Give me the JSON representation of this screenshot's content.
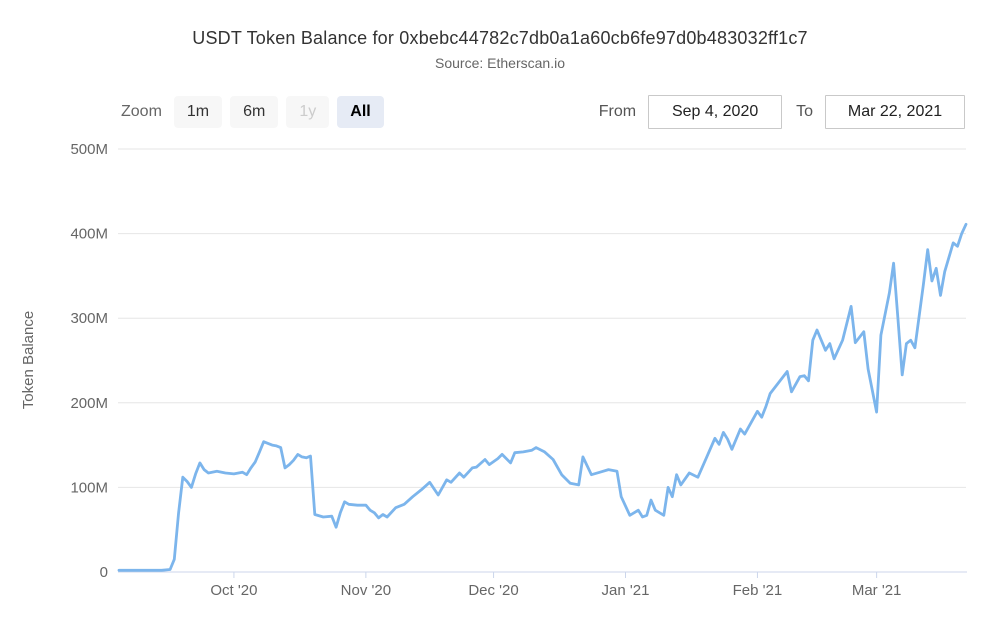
{
  "chart": {
    "title": "USDT Token Balance for 0xbebc44782c7db0a1a60cb6fe97d0b483032ff1c7",
    "subtitle": "Source: Etherscan.io"
  },
  "toolbar": {
    "zoom_label": "Zoom",
    "buttons": [
      {
        "label": "1m",
        "state": "normal"
      },
      {
        "label": "6m",
        "state": "normal"
      },
      {
        "label": "1y",
        "state": "disabled"
      },
      {
        "label": "All",
        "state": "selected"
      }
    ]
  },
  "range": {
    "from_label": "From",
    "from_value": "Sep 4, 2020",
    "to_label": "To",
    "to_value": "Mar 22, 2021"
  },
  "chart_data": {
    "type": "line",
    "title": "USDT Token Balance for 0xbebc44782c7db0a1a60cb6fe97d0b483032ff1c7",
    "subtitle": "Source: Etherscan.io",
    "xlabel": "",
    "ylabel": "Token Balance",
    "legend": "none",
    "grid": "horizontal-only",
    "x_range": [
      "2020-09-04",
      "2021-03-22"
    ],
    "ylim_millions": [
      0,
      500
    ],
    "y_ticks": [
      {
        "value_m": 0,
        "label": "0"
      },
      {
        "value_m": 100,
        "label": "100M"
      },
      {
        "value_m": 200,
        "label": "200M"
      },
      {
        "value_m": 300,
        "label": "300M"
      },
      {
        "value_m": 400,
        "label": "400M"
      },
      {
        "value_m": 500,
        "label": "500M"
      }
    ],
    "x_ticks": [
      {
        "date": "2020-10-01",
        "label": "Oct '20"
      },
      {
        "date": "2020-11-01",
        "label": "Nov '20"
      },
      {
        "date": "2020-12-01",
        "label": "Dec '20"
      },
      {
        "date": "2021-01-01",
        "label": "Jan '21"
      },
      {
        "date": "2021-02-01",
        "label": "Feb '21"
      },
      {
        "date": "2021-03-01",
        "label": "Mar '21"
      }
    ],
    "series": [
      {
        "name": "USDT Token Balance",
        "color": "#7cb5ec",
        "units": "millions of tokens",
        "points": [
          [
            "2020-09-04",
            2
          ],
          [
            "2020-09-06",
            2
          ],
          [
            "2020-09-08",
            2
          ],
          [
            "2020-09-10",
            2
          ],
          [
            "2020-09-12",
            2
          ],
          [
            "2020-09-14",
            2
          ],
          [
            "2020-09-16",
            3
          ],
          [
            "2020-09-17",
            15
          ],
          [
            "2020-09-18",
            70
          ],
          [
            "2020-09-19",
            112
          ],
          [
            "2020-09-20",
            107
          ],
          [
            "2020-09-21",
            100
          ],
          [
            "2020-09-22",
            116
          ],
          [
            "2020-09-23",
            129
          ],
          [
            "2020-09-24",
            121
          ],
          [
            "2020-09-25",
            117
          ],
          [
            "2020-09-27",
            119
          ],
          [
            "2020-09-29",
            117
          ],
          [
            "2020-10-01",
            116
          ],
          [
            "2020-10-03",
            118
          ],
          [
            "2020-10-04",
            115
          ],
          [
            "2020-10-05",
            123
          ],
          [
            "2020-10-06",
            130
          ],
          [
            "2020-10-07",
            142
          ],
          [
            "2020-10-08",
            154
          ],
          [
            "2020-10-09",
            152
          ],
          [
            "2020-10-10",
            150
          ],
          [
            "2020-10-11",
            149
          ],
          [
            "2020-10-12",
            147
          ],
          [
            "2020-10-13",
            123
          ],
          [
            "2020-10-14",
            127
          ],
          [
            "2020-10-15",
            132
          ],
          [
            "2020-10-16",
            139
          ],
          [
            "2020-10-17",
            136
          ],
          [
            "2020-10-18",
            135
          ],
          [
            "2020-10-19",
            137
          ],
          [
            "2020-10-20",
            68
          ],
          [
            "2020-10-22",
            65
          ],
          [
            "2020-10-24",
            66
          ],
          [
            "2020-10-25",
            53
          ],
          [
            "2020-10-26",
            70
          ],
          [
            "2020-10-27",
            83
          ],
          [
            "2020-10-28",
            80
          ],
          [
            "2020-10-30",
            79
          ],
          [
            "2020-11-01",
            79
          ],
          [
            "2020-11-02",
            73
          ],
          [
            "2020-11-03",
            70
          ],
          [
            "2020-11-04",
            64
          ],
          [
            "2020-11-05",
            68
          ],
          [
            "2020-11-06",
            65
          ],
          [
            "2020-11-08",
            76
          ],
          [
            "2020-11-10",
            80
          ],
          [
            "2020-11-12",
            89
          ],
          [
            "2020-11-14",
            97
          ],
          [
            "2020-11-16",
            106
          ],
          [
            "2020-11-18",
            91
          ],
          [
            "2020-11-20",
            109
          ],
          [
            "2020-11-21",
            106
          ],
          [
            "2020-11-23",
            117
          ],
          [
            "2020-11-24",
            112
          ],
          [
            "2020-11-26",
            123
          ],
          [
            "2020-11-27",
            124
          ],
          [
            "2020-11-29",
            133
          ],
          [
            "2020-11-30",
            127
          ],
          [
            "2020-12-02",
            134
          ],
          [
            "2020-12-03",
            139
          ],
          [
            "2020-12-05",
            129
          ],
          [
            "2020-12-06",
            141
          ],
          [
            "2020-12-08",
            142
          ],
          [
            "2020-12-10",
            144
          ],
          [
            "2020-12-11",
            147
          ],
          [
            "2020-12-13",
            142
          ],
          [
            "2020-12-15",
            133
          ],
          [
            "2020-12-17",
            115
          ],
          [
            "2020-12-19",
            105
          ],
          [
            "2020-12-21",
            103
          ],
          [
            "2020-12-22",
            136
          ],
          [
            "2020-12-24",
            115
          ],
          [
            "2020-12-26",
            118
          ],
          [
            "2020-12-28",
            121
          ],
          [
            "2020-12-30",
            119
          ],
          [
            "2020-12-31",
            89
          ],
          [
            "2021-01-02",
            67
          ],
          [
            "2021-01-04",
            73
          ],
          [
            "2021-01-05",
            65
          ],
          [
            "2021-01-06",
            67
          ],
          [
            "2021-01-07",
            85
          ],
          [
            "2021-01-08",
            73
          ],
          [
            "2021-01-10",
            67
          ],
          [
            "2021-01-11",
            100
          ],
          [
            "2021-01-12",
            89
          ],
          [
            "2021-01-13",
            115
          ],
          [
            "2021-01-14",
            103
          ],
          [
            "2021-01-16",
            117
          ],
          [
            "2021-01-18",
            112
          ],
          [
            "2021-01-20",
            135
          ],
          [
            "2021-01-22",
            158
          ],
          [
            "2021-01-23",
            151
          ],
          [
            "2021-01-24",
            165
          ],
          [
            "2021-01-25",
            157
          ],
          [
            "2021-01-26",
            145
          ],
          [
            "2021-01-28",
            169
          ],
          [
            "2021-01-29",
            163
          ],
          [
            "2021-02-01",
            190
          ],
          [
            "2021-02-02",
            183
          ],
          [
            "2021-02-03",
            196
          ],
          [
            "2021-02-04",
            211
          ],
          [
            "2021-02-06",
            224
          ],
          [
            "2021-02-08",
            237
          ],
          [
            "2021-02-09",
            213
          ],
          [
            "2021-02-11",
            231
          ],
          [
            "2021-02-12",
            232
          ],
          [
            "2021-02-13",
            226
          ],
          [
            "2021-02-14",
            274
          ],
          [
            "2021-02-15",
            286
          ],
          [
            "2021-02-17",
            262
          ],
          [
            "2021-02-18",
            270
          ],
          [
            "2021-02-19",
            252
          ],
          [
            "2021-02-21",
            274
          ],
          [
            "2021-02-23",
            314
          ],
          [
            "2021-02-24",
            271
          ],
          [
            "2021-02-26",
            284
          ],
          [
            "2021-02-27",
            240
          ],
          [
            "2021-03-01",
            189
          ],
          [
            "2021-03-02",
            280
          ],
          [
            "2021-03-04",
            330
          ],
          [
            "2021-03-05",
            365
          ],
          [
            "2021-03-06",
            300
          ],
          [
            "2021-03-07",
            233
          ],
          [
            "2021-03-08",
            270
          ],
          [
            "2021-03-09",
            274
          ],
          [
            "2021-03-10",
            265
          ],
          [
            "2021-03-12",
            340
          ],
          [
            "2021-03-13",
            381
          ],
          [
            "2021-03-14",
            344
          ],
          [
            "2021-03-15",
            359
          ],
          [
            "2021-03-16",
            327
          ],
          [
            "2021-03-17",
            355
          ],
          [
            "2021-03-19",
            389
          ],
          [
            "2021-03-20",
            385
          ],
          [
            "2021-03-21",
            400
          ],
          [
            "2021-03-22",
            411
          ]
        ]
      }
    ]
  },
  "colors": {
    "series_line": "#7cb5ec",
    "gridline": "#e6e6e6",
    "axis_line": "#ccd6eb",
    "axis_label": "#666666",
    "title_text": "#333333",
    "selected_button_bg": "#e6ebf5",
    "button_bg": "#f7f7f7"
  }
}
